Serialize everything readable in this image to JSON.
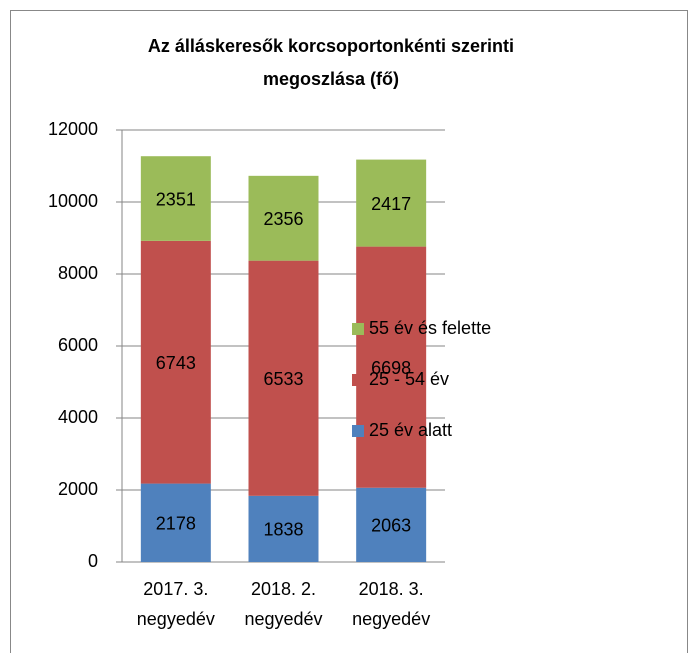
{
  "chart_data": {
    "type": "stacked_bar",
    "title": [
      "Az álláskeresők korcsoportonkénti szerinti",
      "megoszlása (fő)"
    ],
    "categories": [
      "2017. 3. negyedév",
      "2018. 2. negyedév",
      "2018. 3. negyedév"
    ],
    "series": [
      {
        "name": "25 év alatt",
        "color": "#4f81bd",
        "values": [
          2178,
          1838,
          2063
        ]
      },
      {
        "name": "25 - 54 év",
        "color": "#c0504d",
        "values": [
          6743,
          6533,
          6698
        ]
      },
      {
        "name": "55 év és felette",
        "color": "#9bbb59",
        "values": [
          2351,
          2356,
          2417
        ]
      }
    ],
    "ylim": [
      0,
      12000
    ],
    "yticks": [
      0,
      2000,
      4000,
      6000,
      8000,
      10000,
      12000
    ],
    "grid": true,
    "legend": "right"
  }
}
